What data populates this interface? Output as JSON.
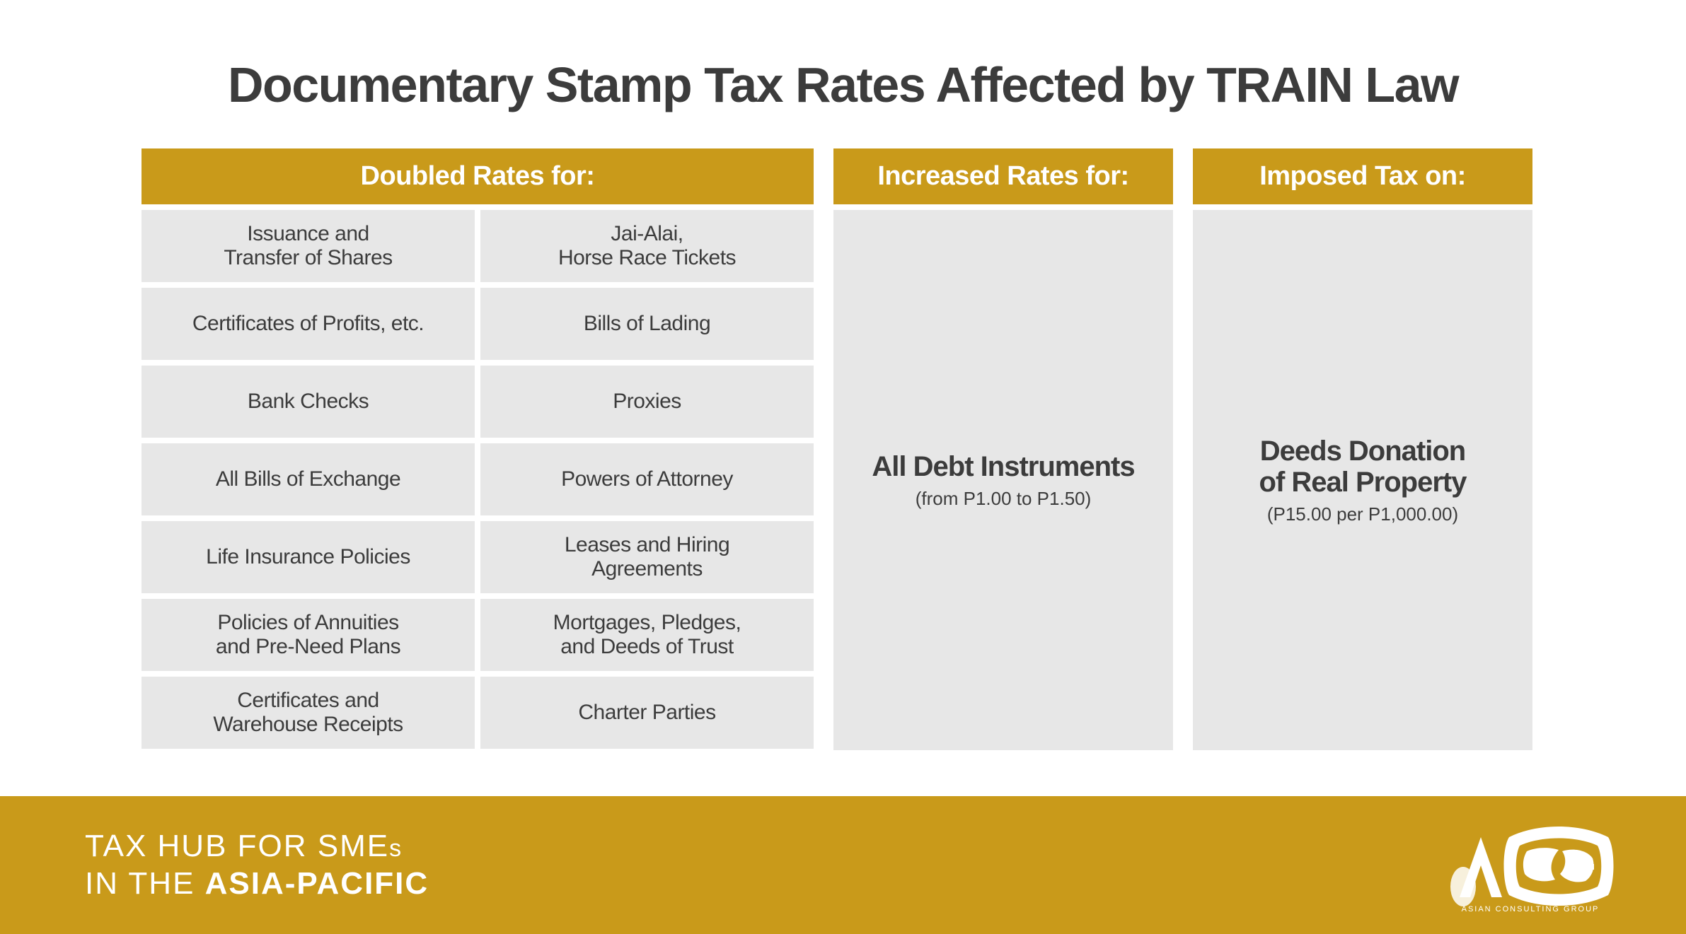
{
  "title": "Documentary Stamp Tax Rates Affected by TRAIN Law",
  "colors": {
    "accent": "#c99a1a",
    "cell_bg": "#e7e7e7",
    "text": "#3c3c3c",
    "page_bg": "#ffffff",
    "footer_text": "#ffffff"
  },
  "sections": {
    "doubled": {
      "header": "Doubled Rates for:",
      "items_left": [
        "Issuance and\nTransfer of Shares",
        "Certificates of Profits, etc.",
        "Bank Checks",
        "All Bills of Exchange",
        "Life Insurance Policies",
        "Policies of Annuities\nand Pre-Need Plans",
        "Certificates and\nWarehouse Receipts"
      ],
      "items_right": [
        "Jai-Alai,\nHorse Race Tickets",
        "Bills of Lading",
        "Proxies",
        "Powers of Attorney",
        "Leases and Hiring\nAgreements",
        "Mortgages, Pledges,\nand Deeds of Trust",
        "Charter Parties"
      ]
    },
    "increased": {
      "header": "Increased Rates for:",
      "main": "All Debt Instruments",
      "sub": "(from P1.00 to P1.50)"
    },
    "imposed": {
      "header": "Imposed Tax on:",
      "main": "Deeds Donation\nof Real Property",
      "sub": "(P15.00 per P1,000.00)"
    }
  },
  "footer": {
    "line1": "TAX HUB FOR SME",
    "line1_suffix": "s",
    "line2_a": "IN THE ",
    "line2_b": "ASIA-PACIFIC",
    "logo_label": "ASIAN CONSULTING GROUP"
  }
}
